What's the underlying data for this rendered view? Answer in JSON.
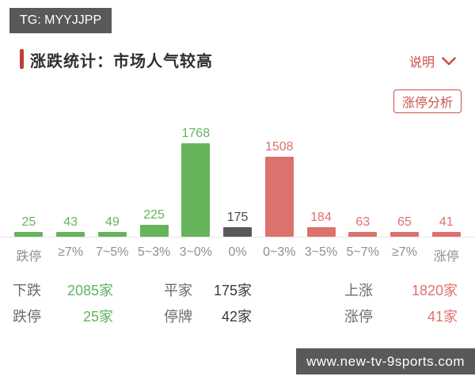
{
  "watermarks": {
    "top": "TG: MYYJJPP",
    "bottom": "www.new-tv-9sports.com"
  },
  "header": {
    "title": "涨跌统计：市场人气较高",
    "help_label": "说明",
    "accent_color": "#c23b38"
  },
  "analysis_button_label": "涨停分析",
  "chart_data": {
    "type": "bar",
    "title": "涨跌统计",
    "categories": [
      "跌停",
      "≥7%",
      "7~5%",
      "5~3%",
      "3~0%",
      "0%",
      "0~3%",
      "3~5%",
      "5~7%",
      "≥7%",
      "涨停"
    ],
    "values": [
      25,
      43,
      49,
      225,
      1768,
      175,
      1508,
      184,
      63,
      65,
      41
    ],
    "bar_groups": [
      "down",
      "down",
      "down",
      "down",
      "down",
      "flat",
      "up",
      "up",
      "up",
      "up",
      "up"
    ],
    "xlabel": "",
    "ylabel": "",
    "ylim": [
      0,
      1768
    ],
    "grid": false,
    "legend": "none",
    "data_labels": true,
    "palette": {
      "down_bar": "#66b35c",
      "flat_bar": "#57585a",
      "up_bar": "#dd716d",
      "down_label": "#66b35c",
      "flat_label": "#474747",
      "up_label": "#dd716d",
      "tick_label": "#8f8f8f",
      "axis_line": "#e6e6e6"
    }
  },
  "summary": {
    "rows": [
      [
        {
          "label": "下跌",
          "value": "2085家",
          "color": "green"
        },
        {
          "label": "平家",
          "value": "175家",
          "color": "dark"
        },
        {
          "label": "上涨",
          "value": "1820家",
          "color": "red"
        }
      ],
      [
        {
          "label": "跌停",
          "value": "25家",
          "color": "green"
        },
        {
          "label": "停牌",
          "value": "42家",
          "color": "dark"
        },
        {
          "label": "涨停",
          "value": "41家",
          "color": "red"
        }
      ]
    ]
  }
}
